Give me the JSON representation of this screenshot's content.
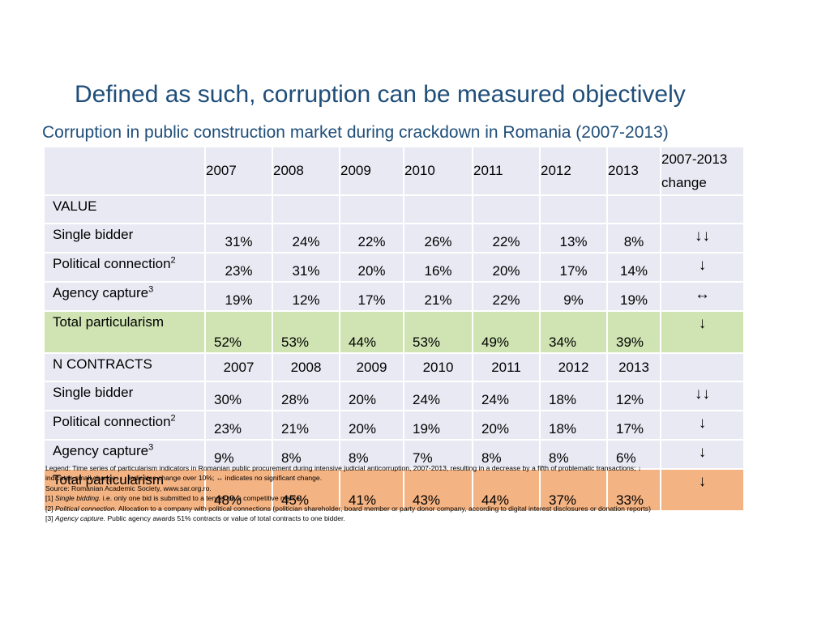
{
  "title": "Defined as such, corruption can be measured objectively",
  "subtitle": "Corruption in public construction market during crackdown in Romania (2007-2013)",
  "table": {
    "years": [
      "2007",
      "2008",
      "2009",
      "2010",
      "2011",
      "2012",
      "2013"
    ],
    "change_header_line1": "2007-2013",
    "change_header_line2": "change",
    "value_section_label": "VALUE",
    "value_rows": [
      {
        "label": "Single bidder",
        "sup": "",
        "values": [
          "31%",
          "24%",
          "22%",
          "26%",
          "22%",
          "13%",
          "8%"
        ],
        "change": "↓↓"
      },
      {
        "label": "Political connection",
        "sup": "2",
        "values": [
          "23%",
          "31%",
          "20%",
          "16%",
          "20%",
          "17%",
          "14%"
        ],
        "change": "↓"
      },
      {
        "label": "Agency capture",
        "sup": "3",
        "values": [
          "19%",
          "12%",
          "17%",
          "21%",
          "22%",
          "9%",
          "19%"
        ],
        "change": "↔"
      }
    ],
    "value_total": {
      "label": "Total particularism",
      "values": [
        "52%",
        "53%",
        "44%",
        "53%",
        "49%",
        "34%",
        "39%"
      ],
      "change": "↓",
      "highlight": "#cfe4b2"
    },
    "contracts_section_label": "N CONTRACTS",
    "contracts_years": [
      "2007",
      "2008",
      "2009",
      "2010",
      "2011",
      "2012",
      "2013"
    ],
    "contracts_rows": [
      {
        "label": "Single bidder",
        "sup": "",
        "values": [
          "30%",
          "28%",
          "20%",
          "24%",
          "24%",
          "18%",
          "12%"
        ],
        "change": "↓↓"
      },
      {
        "label": "Political connection",
        "sup": "2",
        "values": [
          "23%",
          "21%",
          "20%",
          "19%",
          "20%",
          "18%",
          "17%"
        ],
        "change": "↓"
      },
      {
        "label": "Agency capture",
        "sup": "3",
        "values": [
          "9%",
          "8%",
          "8%",
          "7%",
          "8%",
          "8%",
          "6%"
        ],
        "change": "↓"
      }
    ],
    "contracts_total": {
      "label": "Total particularism",
      "values": [
        "48%",
        "45%",
        "41%",
        "43%",
        "44%",
        "37%",
        "33%"
      ],
      "change": "↓",
      "highlight": "#f4b383"
    },
    "cell_bg": "#e9e9f4"
  },
  "notes": {
    "legend_line1": "Legend: Time series of particularism indicators in Romanian public procurement during intensive judicial anticorruption, 2007-2013, resulting in a decrease by a fifth of problematic transactions; ↓",
    "legend_line2": "indicates small change; ↓↓ indicates change over 10%; ↔ indicates no significant change.",
    "source": "Source: Romanian Academic Society, www.sar.org.ro.",
    "fn1_num": " [1] ",
    "fn1_term": "Single bidding.",
    "fn1_text": " i.e. only one bid is submitted to a tender on a competitive market.",
    "fn2_num": "[2] ",
    "fn2_term": "Political connection.",
    "fn2_text": " Allocation to a company with political connections (politician shareholder, board member or party donor company, according to digital interest disclosures or donation reports)",
    "fn3_num": "[3] ",
    "fn3_term": "Agency capture.",
    "fn3_text": " Public agency awards 51% contracts or value of total contracts to one bidder."
  },
  "colors": {
    "title": "#1f4e79",
    "green_row": "#cfe4b2",
    "orange_row": "#f4b383"
  }
}
